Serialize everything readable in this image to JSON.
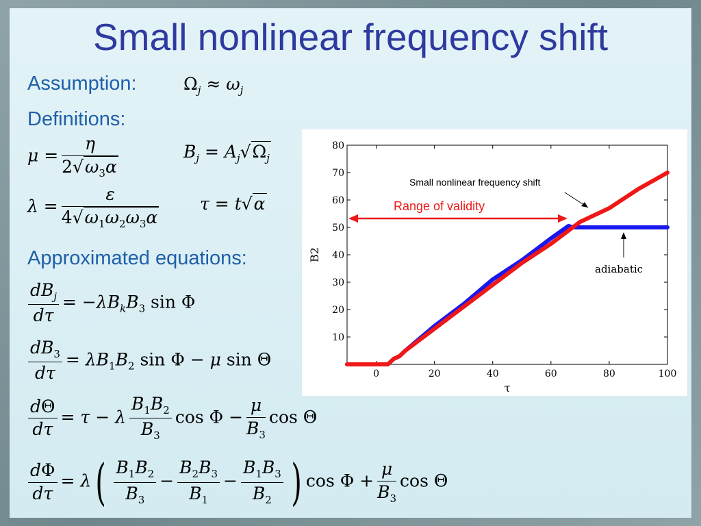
{
  "title": "Small nonlinear frequency shift",
  "labels": {
    "assumption": "Assumption:",
    "definitions": "Definitions:",
    "approximated": "Approximated equations:"
  },
  "colors": {
    "title": "#2e3a9f",
    "labels": "#1f5fa8",
    "blue_series": "#1818ee",
    "red_series": "#ee1818"
  },
  "chart_data": {
    "type": "line",
    "xlabel": "τ",
    "ylabel": "B2",
    "xlim": [
      -10,
      100
    ],
    "ylim": [
      0,
      80
    ],
    "x_ticks": [
      0,
      20,
      40,
      60,
      80,
      100
    ],
    "y_ticks": [
      10,
      20,
      30,
      40,
      50,
      60,
      70,
      80
    ],
    "grid": false,
    "annotations": {
      "shift": "Small nonlinear frequency shift",
      "validity": "Range of validity",
      "adiabatic": "adiabatic"
    },
    "series": [
      {
        "color": "#1818ee",
        "x": [
          -10,
          4,
          6,
          8,
          10,
          20,
          30,
          40,
          50,
          60,
          66,
          68,
          70,
          80,
          90,
          100
        ],
        "y": [
          0,
          0,
          2,
          3,
          5,
          14,
          22,
          31,
          38,
          46,
          50.5,
          50,
          50,
          50,
          50,
          50
        ]
      },
      {
        "color": "#ee1818",
        "x": [
          -10,
          4,
          6,
          8,
          10,
          20,
          30,
          40,
          50,
          60,
          70,
          80,
          90,
          100
        ],
        "y": [
          0,
          0,
          2,
          3,
          5,
          13,
          21,
          29,
          37,
          44,
          52,
          57,
          64,
          70
        ]
      }
    ]
  }
}
